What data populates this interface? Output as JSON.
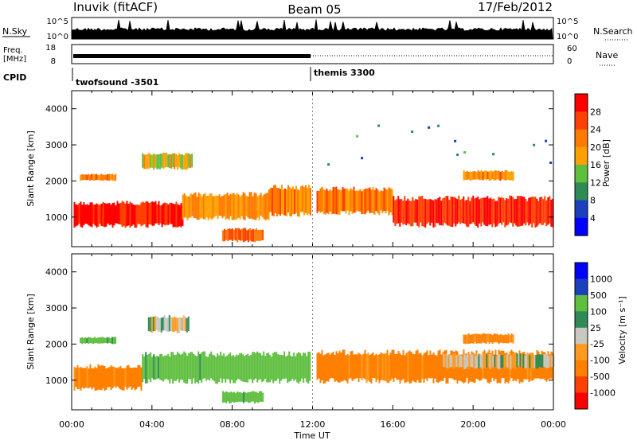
{
  "header": {
    "station": "Inuvik (fitACF)",
    "beam": "Beam 05",
    "date": "17/Feb/2012"
  },
  "sky_panel": {
    "left_label": "N.Sky",
    "right_label": "N.Search",
    "left_ticks": [
      "10^5",
      "10^0"
    ],
    "right_ticks": [
      "10^5",
      "10^0"
    ]
  },
  "freq_panel": {
    "left_label_1": "Freq.",
    "left_label_2": "[MHz]",
    "right_label": "Nave",
    "left_ticks": [
      "18",
      "8"
    ],
    "right_ticks": [
      "60",
      "0"
    ]
  },
  "cpid_panel": {
    "label": "CPID",
    "modes": [
      {
        "name": "twofsound -3501",
        "start_hour": 0
      },
      {
        "name": "themis 3300",
        "start_hour": 12
      }
    ]
  },
  "colors": {
    "power": [
      "#0000ff",
      "#1a3fbf",
      "#2e8b57",
      "#5fbf3f",
      "#ffa000",
      "#ff7a00",
      "#ff4000",
      "#ff0000"
    ],
    "velocity": [
      "#ff0000",
      "#ff4000",
      "#ff8000",
      "#ff9a20",
      "#c8c8c0",
      "#2e8b57",
      "#5fbf3f",
      "#1a3fbf",
      "#0000ff"
    ],
    "line": "#000000",
    "dotted": "#888888"
  },
  "chart_data": [
    {
      "type": "heatmap",
      "name": "power",
      "ylabel": "Slant Range [km]",
      "xlabel": "",
      "xlim": [
        0,
        24
      ],
      "ylim": [
        180,
        4500
      ],
      "y_ticks": [
        1000,
        2000,
        3000,
        4000
      ],
      "y_tick_labels": [
        "1000",
        "2000",
        "3000",
        "4000"
      ],
      "colorbar": {
        "label": "Power [dB]",
        "ticks": [
          "4",
          "8",
          "12",
          "16",
          "20",
          "24",
          "28"
        ],
        "range": [
          0,
          32
        ]
      },
      "bands": [
        {
          "t0": 0.1,
          "t1": 5.5,
          "r0": 700,
          "r1": 1450,
          "value": 29
        },
        {
          "t0": 5.5,
          "t1": 9.8,
          "r0": 900,
          "r1": 1700,
          "value": 20
        },
        {
          "t0": 9.8,
          "t1": 11.9,
          "r0": 1000,
          "r1": 1900,
          "value": 22
        },
        {
          "t0": 12.2,
          "t1": 16.0,
          "r0": 1050,
          "r1": 1850,
          "value": 22
        },
        {
          "t0": 16.0,
          "t1": 24.0,
          "r0": 700,
          "r1": 1600,
          "value": 28
        },
        {
          "t0": 3.5,
          "t1": 6.0,
          "r0": 2300,
          "r1": 2800,
          "value": 17
        },
        {
          "t0": 19.5,
          "t1": 22.0,
          "r0": 2000,
          "r1": 2300,
          "value": 21
        },
        {
          "t0": 0.4,
          "t1": 2.2,
          "r0": 2000,
          "r1": 2200,
          "value": 22
        },
        {
          "t0": 7.5,
          "t1": 9.5,
          "r0": 300,
          "r1": 700,
          "value": 24
        },
        {
          "t0": 12.5,
          "t1": 24.0,
          "r0": 2100,
          "r1": 3700,
          "value": 9
        }
      ]
    },
    {
      "type": "heatmap",
      "name": "velocity",
      "ylabel": "Slant Range [km]",
      "xlabel": "Time UT",
      "xlim": [
        0,
        24
      ],
      "ylim": [
        180,
        4500
      ],
      "x_tick_labels": [
        "00:00",
        "04:00",
        "08:00",
        "12:00",
        "16:00",
        "20:00",
        "00:00"
      ],
      "y_ticks": [
        1000,
        2000,
        3000,
        4000
      ],
      "y_tick_labels": [
        "1000",
        "2000",
        "3000",
        "4000"
      ],
      "colorbar": {
        "label": "Velocity [m s⁻¹]",
        "ticks": [
          "1000",
          "500",
          "100",
          "25",
          "-25",
          "-100",
          "-500",
          "-1000"
        ]
      },
      "bands": [
        {
          "t0": 0.1,
          "t1": 3.5,
          "r0": 700,
          "r1": 1450,
          "value": -150
        },
        {
          "t0": 3.5,
          "t1": 11.9,
          "r0": 900,
          "r1": 1800,
          "value": 150
        },
        {
          "t0": 12.2,
          "t1": 24.0,
          "r0": 900,
          "r1": 1850,
          "value": -150
        },
        {
          "t0": 3.8,
          "t1": 5.8,
          "r0": 2300,
          "r1": 2800,
          "value": 0
        },
        {
          "t0": 18.5,
          "t1": 24.0,
          "r0": 1300,
          "r1": 1750,
          "value": 0
        },
        {
          "t0": 19.5,
          "t1": 22.0,
          "r0": 2000,
          "r1": 2300,
          "value": -150
        },
        {
          "t0": 7.5,
          "t1": 9.5,
          "r0": 350,
          "r1": 700,
          "value": 150
        },
        {
          "t0": 0.4,
          "t1": 2.2,
          "r0": 2000,
          "r1": 2200,
          "value": 150
        }
      ]
    }
  ]
}
